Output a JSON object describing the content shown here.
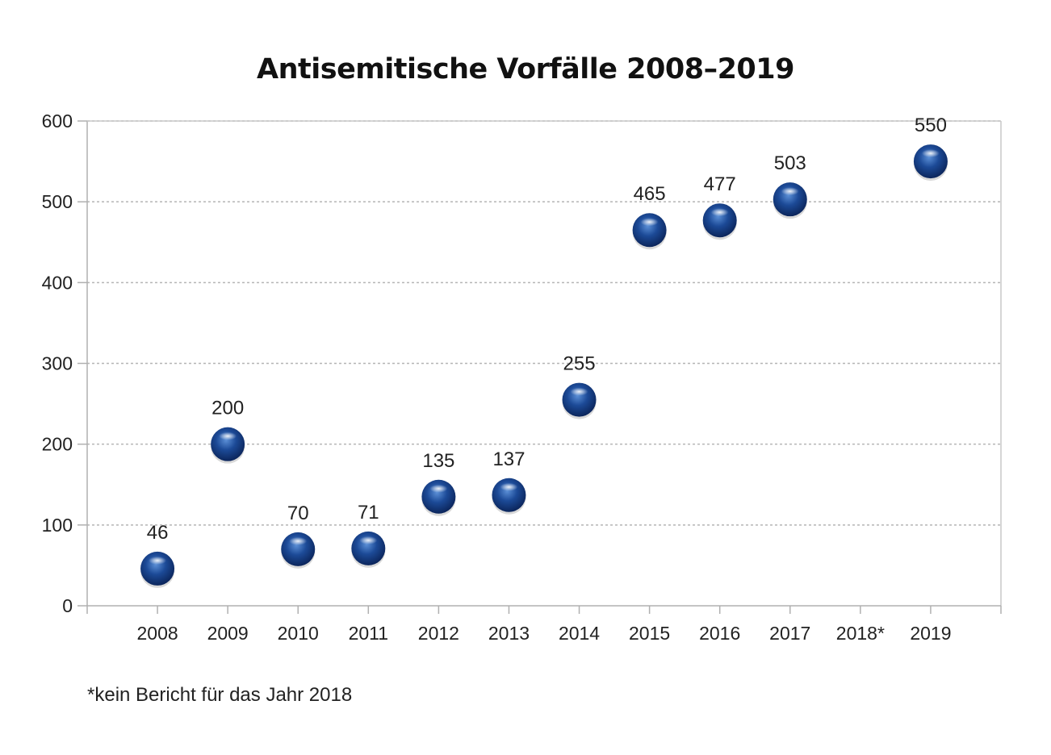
{
  "chart_data": {
    "type": "scatter",
    "title": "Antisemitische Vorfälle 2008–2019",
    "xlabel": "",
    "ylabel": "",
    "categories": [
      "2008",
      "2009",
      "2010",
      "2011",
      "2012",
      "2013",
      "2014",
      "2015",
      "2016",
      "2017",
      "2018*",
      "2019"
    ],
    "series": [
      {
        "values": [
          46,
          200,
          70,
          71,
          135,
          137,
          255,
          465,
          477,
          503,
          null,
          550
        ]
      }
    ],
    "ylim": [
      0,
      600
    ],
    "yticks": [
      0,
      100,
      200,
      300,
      400,
      500,
      600
    ],
    "grid": true,
    "legend": "none",
    "marker_color": "#1c4a97",
    "footnote": "*kein Bericht für das Jahr 2018"
  }
}
